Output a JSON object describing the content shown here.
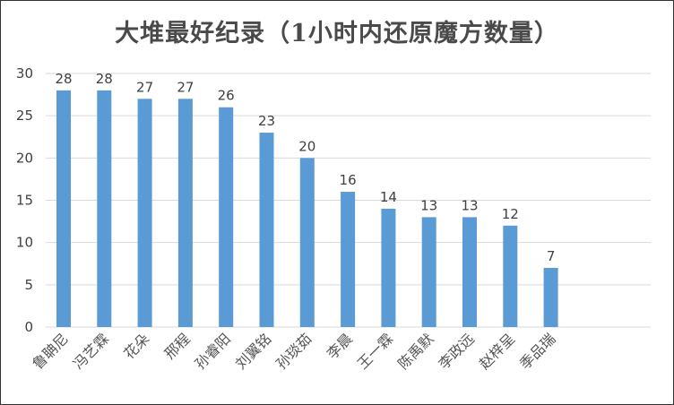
{
  "chart_data": {
    "type": "bar",
    "title": "大堆最好纪录（1小时内还原魔方数量）",
    "xlabel": "",
    "ylabel": "",
    "categories": [
      "鲁聃尼",
      "冯艺霖",
      "花朵",
      "邢程",
      "孙睿阳",
      "刘翼铭",
      "孙琰茹",
      "李晨",
      "王一霖",
      "陈禹默",
      "李政远",
      "赵梓呈",
      "季品瑞"
    ],
    "values": [
      28,
      28,
      27,
      27,
      26,
      23,
      20,
      16,
      14,
      13,
      13,
      12,
      7
    ],
    "ylim": [
      0,
      30
    ],
    "yticks": [
      0,
      5,
      10,
      15,
      20,
      25,
      30
    ],
    "grid": true,
    "legend": "none",
    "data_labels": true,
    "bar_color": "#5b9bd5",
    "grid_color": "#d9d9d9"
  }
}
